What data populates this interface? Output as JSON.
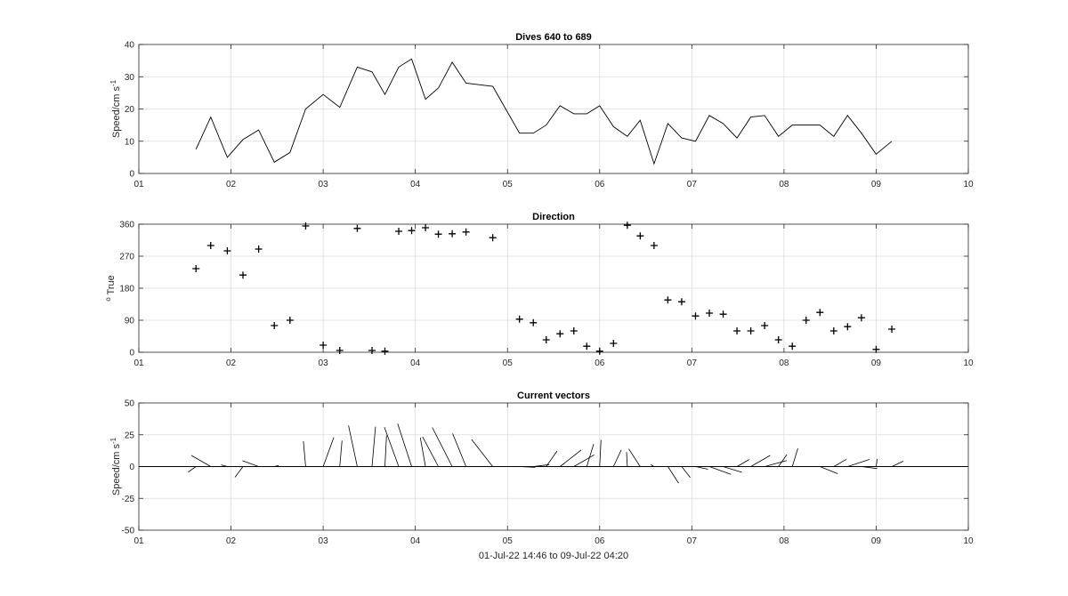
{
  "chart_data": [
    {
      "type": "line",
      "title": "Dives 640 to 689",
      "ylabel": "Speed/cm s",
      "ylabel_sup": "-1",
      "xlim": [
        1,
        10
      ],
      "ylim": [
        0,
        40
      ],
      "xticks": [
        "01",
        "02",
        "03",
        "04",
        "05",
        "06",
        "07",
        "08",
        "09",
        "10"
      ],
      "yticks": [
        0,
        10,
        20,
        30,
        40
      ],
      "grid": true,
      "x": [
        1.62,
        1.78,
        1.96,
        2.13,
        2.3,
        2.47,
        2.64,
        2.81,
        3.0,
        3.18,
        3.37,
        3.53,
        3.67,
        3.82,
        3.96,
        4.11,
        4.25,
        4.4,
        4.55,
        4.84,
        5.13,
        5.28,
        5.42,
        5.57,
        5.72,
        5.86,
        6.0,
        6.15,
        6.3,
        6.44,
        6.59,
        6.74,
        6.89,
        7.04,
        7.19,
        7.34,
        7.49,
        7.64,
        7.79,
        7.94,
        8.09,
        8.24,
        8.39,
        8.54,
        8.69,
        8.84,
        9.0,
        9.17
      ],
      "y": [
        7.5,
        17.5,
        5,
        10.5,
        13.5,
        3.5,
        6.5,
        20,
        24.5,
        20.5,
        33,
        31.5,
        24.5,
        33,
        35.5,
        23,
        26.5,
        34.5,
        28,
        27,
        12.5,
        12.5,
        15,
        21,
        18.5,
        18.5,
        21,
        14.5,
        11.5,
        16.5,
        3,
        15.5,
        11,
        10,
        18,
        15.5,
        11,
        17.5,
        18,
        11.5,
        15,
        15,
        15,
        11.5,
        18,
        12.5,
        6,
        10
      ]
    },
    {
      "type": "scatter",
      "title": "Direction",
      "ylabel": "True",
      "ylabel_sup": "o",
      "xlim": [
        1,
        10
      ],
      "ylim": [
        0,
        360
      ],
      "xticks": [
        "01",
        "02",
        "03",
        "04",
        "05",
        "06",
        "07",
        "08",
        "09",
        "10"
      ],
      "yticks": [
        0,
        90,
        180,
        270,
        360
      ],
      "grid": true,
      "marker": "+",
      "x": [
        1.62,
        1.78,
        1.96,
        2.13,
        2.3,
        2.47,
        2.64,
        2.81,
        3.0,
        3.18,
        3.37,
        3.53,
        3.67,
        3.82,
        3.96,
        4.11,
        4.25,
        4.4,
        4.55,
        4.84,
        5.13,
        5.28,
        5.42,
        5.57,
        5.72,
        5.86,
        6.0,
        6.15,
        6.3,
        6.44,
        6.59,
        6.74,
        6.89,
        7.04,
        7.19,
        7.34,
        7.49,
        7.64,
        7.79,
        7.94,
        8.09,
        8.24,
        8.39,
        8.54,
        8.69,
        8.84,
        9.0,
        9.17
      ],
      "y": [
        235,
        300,
        285,
        217,
        290,
        75,
        90,
        355,
        20,
        5,
        348,
        5,
        3,
        340,
        342,
        350,
        332,
        333,
        338,
        322,
        93,
        83,
        35,
        52,
        60,
        17,
        3,
        25,
        357,
        327,
        300,
        147,
        142,
        102,
        110,
        107,
        60,
        60,
        75,
        35,
        17,
        90,
        112,
        60,
        72,
        97,
        8,
        65
      ]
    },
    {
      "type": "vector",
      "title": "Current vectors",
      "ylabel": "Speed/cm s",
      "ylabel_sup": "-1",
      "xlabel": "01-Jul-22 14:46 to 09-Jul-22 04:20",
      "xlim": [
        1,
        10
      ],
      "ylim": [
        -50,
        50
      ],
      "xticks": [
        "01",
        "02",
        "03",
        "04",
        "05",
        "06",
        "07",
        "08",
        "09",
        "10"
      ],
      "yticks": [
        -50,
        -25,
        0,
        25,
        50
      ],
      "grid": true,
      "x": [
        1.62,
        1.78,
        1.96,
        2.13,
        2.3,
        2.47,
        2.64,
        2.81,
        3.0,
        3.18,
        3.37,
        3.53,
        3.67,
        3.82,
        3.96,
        4.11,
        4.25,
        4.4,
        4.55,
        4.84,
        5.13,
        5.28,
        5.42,
        5.57,
        5.72,
        5.86,
        6.0,
        6.15,
        6.3,
        6.44,
        6.59,
        6.74,
        6.89,
        7.04,
        7.19,
        7.34,
        7.49,
        7.64,
        7.79,
        7.94,
        8.09,
        8.24,
        8.39,
        8.54,
        8.69,
        8.84,
        9.0,
        9.17
      ],
      "speed": [
        7.5,
        17.5,
        5,
        10.5,
        13.5,
        3.5,
        6.5,
        20,
        24.5,
        20.5,
        33,
        31.5,
        24.5,
        33,
        35.5,
        23,
        26.5,
        34.5,
        28,
        27,
        12.5,
        12.5,
        15,
        21,
        18.5,
        18.5,
        21,
        14.5,
        11.5,
        16.5,
        3,
        15.5,
        11,
        10,
        18,
        15.5,
        11,
        17.5,
        18,
        11.5,
        15,
        15,
        15,
        11.5,
        18,
        12.5,
        6,
        10
      ],
      "direction": [
        235,
        300,
        285,
        217,
        290,
        75,
        90,
        355,
        20,
        5,
        348,
        5,
        3,
        340,
        342,
        350,
        332,
        333,
        338,
        322,
        93,
        83,
        35,
        52,
        60,
        17,
        3,
        25,
        357,
        327,
        300,
        147,
        142,
        102,
        110,
        107,
        60,
        60,
        75,
        35,
        17,
        90,
        112,
        60,
        72,
        97,
        8,
        65
      ]
    }
  ]
}
